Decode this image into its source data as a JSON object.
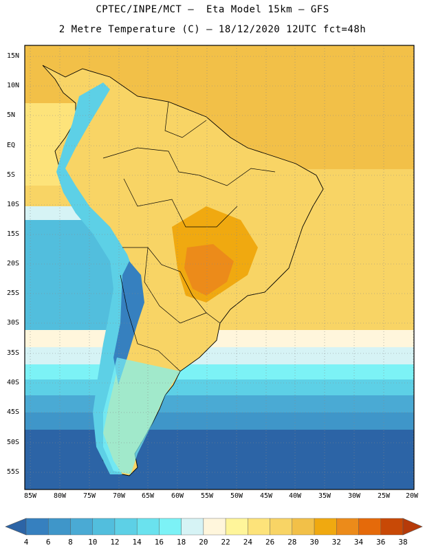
{
  "title_line1": "CPTEC/INPE/MCT –  Eta Model 15km – GFS",
  "title_line2": "2 Metre Temperature (C) – 18/12/2020 12UTC fct=48h",
  "lat_labels": [
    "15N",
    "10N",
    "5N",
    "EQ",
    "5S",
    "10S",
    "15S",
    "20S",
    "25S",
    "30S",
    "35S",
    "40S",
    "45S",
    "50S",
    "55S"
  ],
  "lon_labels": [
    "85W",
    "80W",
    "75W",
    "70W",
    "65W",
    "60W",
    "55W",
    "50W",
    "45W",
    "40W",
    "35W",
    "30W",
    "25W",
    "20W"
  ],
  "colorbar": {
    "labels": [
      "4",
      "6",
      "8",
      "10",
      "12",
      "14",
      "16",
      "18",
      "20",
      "22",
      "24",
      "26",
      "28",
      "30",
      "32",
      "34",
      "36",
      "38"
    ],
    "colors": [
      "#2c64a6",
      "#3680bf",
      "#3f96c9",
      "#4aaad4",
      "#52bedd",
      "#5dd0e6",
      "#6ae2ee",
      "#7cf2f6",
      "#d6f3f5",
      "#fff6dc",
      "#fff59a",
      "#fde37a",
      "#f8d465",
      "#f2c048",
      "#f0a910",
      "#ec8b1a",
      "#e56a0a",
      "#c84906",
      "#b63a09"
    ]
  }
}
